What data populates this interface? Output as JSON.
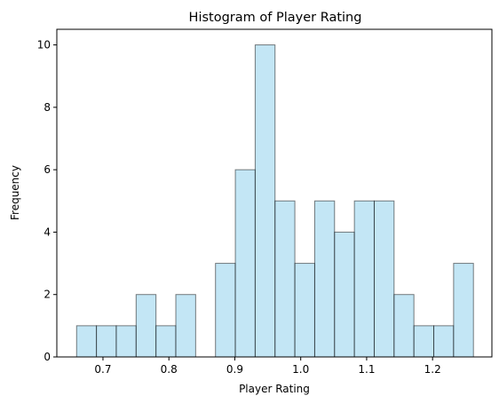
{
  "chart_data": {
    "type": "bar",
    "title": "Histogram of Player Rating",
    "xlabel": "Player Rating",
    "ylabel": "Frequency",
    "bin_start": 0.66,
    "bin_width": 0.0301,
    "values": [
      1,
      1,
      1,
      2,
      1,
      2,
      0,
      3,
      6,
      10,
      5,
      3,
      5,
      4,
      5,
      5,
      2,
      1,
      1,
      3
    ],
    "xlim": [
      0.63,
      1.29
    ],
    "ylim": [
      0,
      10.5
    ],
    "xticks": [
      0.7,
      0.8,
      0.9,
      1.0,
      1.1,
      1.2
    ],
    "xtick_labels": [
      "0.7",
      "0.8",
      "0.9",
      "1.0",
      "1.1",
      "1.2"
    ],
    "yticks": [
      0,
      2,
      4,
      6,
      8,
      10
    ],
    "ytick_labels": [
      "0",
      "2",
      "4",
      "6",
      "8",
      "10"
    ],
    "grid": false,
    "bar_color": "#87ceeb",
    "bar_alpha": 0.5,
    "edge_color": "#000000"
  }
}
